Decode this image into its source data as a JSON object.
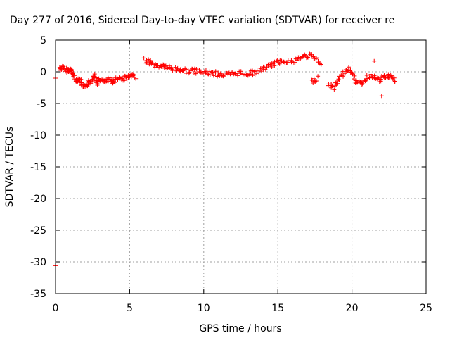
{
  "chart_data": {
    "type": "scatter",
    "title": "Day 277 of 2016, Sidereal Day-to-day VTEC variation (SDTVAR) for receiver re",
    "xlabel": "GPS time / hours",
    "ylabel": "SDTVAR / TECUs",
    "xlim": [
      0,
      25
    ],
    "ylim": [
      -35,
      5
    ],
    "xticks": [
      0,
      5,
      10,
      15,
      20,
      25
    ],
    "yticks": [
      5,
      0,
      -5,
      -10,
      -15,
      -20,
      -25,
      -30,
      -35
    ],
    "grid": true,
    "marker": "+",
    "series": [
      {
        "name": "SDTVAR",
        "color": "#ff0000",
        "outliers": [
          [
            0.0,
            -1.0
          ],
          [
            0.0,
            -30.6
          ],
          [
            21.5,
            1.7
          ],
          [
            22.0,
            -3.8
          ]
        ],
        "trace": [
          [
            0.3,
            0.5
          ],
          [
            0.5,
            0.6
          ],
          [
            0.8,
            0.2
          ],
          [
            1.0,
            0.4
          ],
          [
            1.2,
            -0.5
          ],
          [
            1.4,
            -1.5
          ],
          [
            1.6,
            -1.0
          ],
          [
            1.8,
            -2.0
          ],
          [
            2.0,
            -2.6
          ],
          [
            2.2,
            -1.8
          ],
          [
            2.4,
            -1.5
          ],
          [
            2.6,
            -0.3
          ],
          [
            2.8,
            -1.8
          ],
          [
            3.0,
            -1.2
          ],
          [
            3.3,
            -1.6
          ],
          [
            3.6,
            -1.3
          ],
          [
            3.9,
            -1.5
          ],
          [
            4.2,
            -1.0
          ],
          [
            4.5,
            -1.1
          ],
          [
            4.8,
            -0.9
          ],
          [
            5.1,
            -0.7
          ],
          [
            5.4,
            -0.8
          ],
          [
            6.0,
            1.8
          ],
          [
            6.4,
            1.5
          ],
          [
            6.8,
            0.9
          ],
          [
            7.2,
            1.0
          ],
          [
            7.6,
            0.6
          ],
          [
            8.0,
            0.4
          ],
          [
            8.5,
            0.3
          ],
          [
            9.0,
            0.1
          ],
          [
            9.5,
            0.1
          ],
          [
            10.0,
            -0.1
          ],
          [
            10.5,
            -0.2
          ],
          [
            11.0,
            -0.4
          ],
          [
            11.5,
            -0.5
          ],
          [
            12.0,
            -0.3
          ],
          [
            12.5,
            -0.2
          ],
          [
            13.0,
            -0.3
          ],
          [
            13.5,
            -0.1
          ],
          [
            14.0,
            0.4
          ],
          [
            14.5,
            1.0
          ],
          [
            15.0,
            1.5
          ],
          [
            15.5,
            1.8
          ],
          [
            16.0,
            1.5
          ],
          [
            16.5,
            2.2
          ],
          [
            17.0,
            2.6
          ],
          [
            17.5,
            2.2
          ],
          [
            18.0,
            0.8
          ],
          [
            17.3,
            -1.6
          ],
          [
            17.7,
            -0.9
          ],
          [
            18.4,
            -1.8
          ],
          [
            18.8,
            -2.5
          ],
          [
            19.1,
            -1.2
          ],
          [
            19.5,
            0.0
          ],
          [
            19.9,
            0.5
          ],
          [
            20.2,
            -1.2
          ],
          [
            20.5,
            -2.0
          ],
          [
            20.9,
            -1.2
          ],
          [
            21.3,
            -0.5
          ],
          [
            21.8,
            -1.4
          ],
          [
            22.2,
            -0.8
          ],
          [
            22.6,
            -0.6
          ],
          [
            22.9,
            -1.5
          ]
        ]
      }
    ]
  }
}
